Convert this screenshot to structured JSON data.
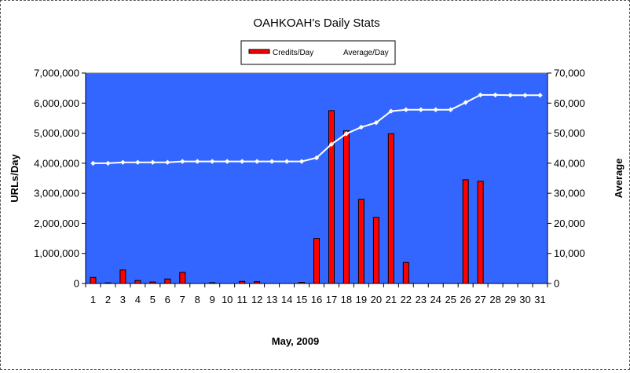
{
  "chart_data": {
    "type": "bar",
    "title": "OAHKOAH's Daily Stats",
    "xlabel": "May, 2009",
    "ylabel": "URLs/Day",
    "y2label": "Average",
    "categories": [
      "1",
      "2",
      "3",
      "4",
      "5",
      "6",
      "7",
      "8",
      "9",
      "10",
      "11",
      "12",
      "13",
      "14",
      "15",
      "16",
      "17",
      "18",
      "19",
      "20",
      "21",
      "22",
      "23",
      "24",
      "25",
      "26",
      "27",
      "28",
      "29",
      "30",
      "31"
    ],
    "series": [
      {
        "name": "Credits/Day",
        "type": "bar",
        "axis": "left",
        "color": "#ff0000",
        "values": [
          200000,
          20000,
          450000,
          100000,
          50000,
          150000,
          370000,
          0,
          30000,
          0,
          70000,
          60000,
          0,
          0,
          40000,
          1500000,
          5750000,
          5080000,
          2800000,
          2200000,
          4980000,
          700000,
          0,
          0,
          0,
          3450000,
          3400000,
          0,
          0,
          0,
          0
        ]
      },
      {
        "name": "Average/Day",
        "type": "line",
        "axis": "right",
        "color": "#ffffff",
        "values": [
          40000,
          40000,
          40300,
          40300,
          40300,
          40300,
          40600,
          40600,
          40600,
          40600,
          40600,
          40600,
          40600,
          40600,
          40600,
          41800,
          46300,
          49800,
          52000,
          53500,
          57300,
          57800,
          57800,
          57800,
          57800,
          60200,
          62700,
          62700,
          62600,
          62600,
          62600
        ]
      }
    ],
    "ylim": [
      0,
      7000000
    ],
    "y2lim": [
      0,
      70000
    ],
    "yticks": [
      "0",
      "1,000,000",
      "2,000,000",
      "3,000,000",
      "4,000,000",
      "5,000,000",
      "6,000,000",
      "7,000,000"
    ],
    "y2ticks": [
      "0",
      "10,000",
      "20,000",
      "30,000",
      "40,000",
      "50,000",
      "60,000",
      "70,000"
    ],
    "plot_background": "#3366ff",
    "grid": false,
    "legend_position": "top-center"
  }
}
